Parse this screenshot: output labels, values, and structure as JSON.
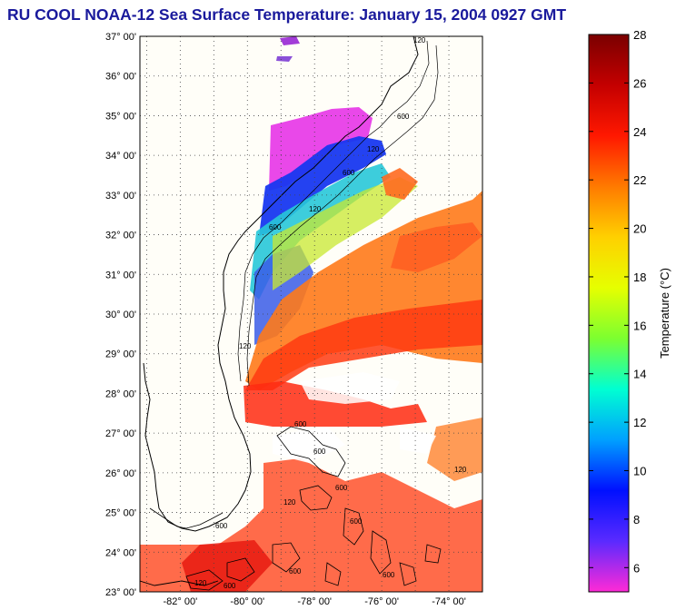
{
  "title": "RU COOL  NOAA-12  Sea Surface Temperature:  January 15, 2004 0927 GMT",
  "map": {
    "lat_labels": [
      "37° 00'",
      "36° 00'",
      "35° 00'",
      "34° 00'",
      "33° 00'",
      "32° 00'",
      "31° 00'",
      "30° 00'",
      "29° 00'",
      "28° 00'",
      "27° 00'",
      "26° 00'",
      "25° 00'",
      "24° 00'",
      "23° 00'"
    ],
    "lon_labels": [
      "-82° 00'",
      "-80° 00'",
      "-78° 00'",
      "-76° 00'",
      "-74° 00'"
    ],
    "lat_range": [
      23,
      37
    ],
    "lon_range": [
      -83.2,
      -73
    ],
    "contour_labels": [
      "120",
      "600",
      "120",
      "600",
      "120",
      "600",
      "120",
      "600",
      "600",
      "600",
      "600",
      "120",
      "600",
      "120",
      "600",
      "600",
      "600",
      "120"
    ]
  },
  "colorbar": {
    "label": "Temperature (°C)",
    "ticks": [
      "28",
      "26",
      "24",
      "22",
      "20",
      "18",
      "16",
      "14",
      "12",
      "10",
      "8",
      "6"
    ],
    "range": [
      5,
      28
    ],
    "stops": [
      "#7a0000",
      "#c40000",
      "#ff1800",
      "#ff7a00",
      "#ffd000",
      "#e6ff00",
      "#7cff30",
      "#00ffd2",
      "#00a0ff",
      "#0010ff",
      "#5a2aff",
      "#ff2ad6"
    ]
  }
}
